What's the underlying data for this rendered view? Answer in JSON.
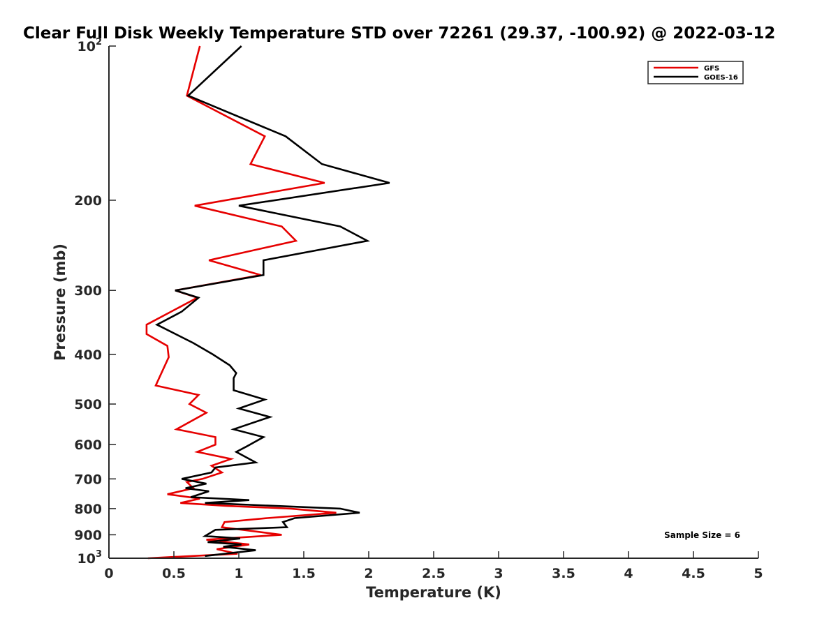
{
  "chart_data": {
    "type": "line",
    "title": "Clear Full Disk Weekly Temperature STD over 72261 (29.37, -100.92) @ 2022-03-12",
    "xlabel": "Temperature (K)",
    "ylabel": "Pressure (mb)",
    "xlim": [
      0,
      5
    ],
    "ylim": [
      1000,
      100
    ],
    "y_scale": "log",
    "x_ticks": [
      "0",
      "0.5",
      "1",
      "1.5",
      "2",
      "2.5",
      "3",
      "3.5",
      "4",
      "4.5",
      "5"
    ],
    "y_ticks": [
      {
        "value": 100,
        "base": "10",
        "exp": "2"
      },
      {
        "value": 200,
        "label": "200"
      },
      {
        "value": 300,
        "label": "300"
      },
      {
        "value": 400,
        "label": "400"
      },
      {
        "value": 500,
        "label": "500"
      },
      {
        "value": 600,
        "label": "600"
      },
      {
        "value": 700,
        "label": "700"
      },
      {
        "value": 800,
        "label": "800"
      },
      {
        "value": 900,
        "label": "900"
      },
      {
        "value": 1000,
        "base": "10",
        "exp": "3"
      }
    ],
    "grid": false,
    "legend_position": "top-right",
    "annotation": "Sample Size = 6",
    "series": [
      {
        "name": "GFS",
        "color": "#e60000",
        "points": [
          [
            0.7,
            100
          ],
          [
            0.6,
            125
          ],
          [
            1.2,
            150
          ],
          [
            1.09,
            170
          ],
          [
            1.66,
            185
          ],
          [
            0.66,
            205
          ],
          [
            1.33,
            225
          ],
          [
            1.44,
            240
          ],
          [
            0.77,
            262
          ],
          [
            1.17,
            280
          ],
          [
            0.51,
            300
          ],
          [
            0.68,
            310
          ],
          [
            0.29,
            350
          ],
          [
            0.29,
            365
          ],
          [
            0.45,
            385
          ],
          [
            0.46,
            405
          ],
          [
            0.36,
            460
          ],
          [
            0.69,
            480
          ],
          [
            0.62,
            500
          ],
          [
            0.75,
            520
          ],
          [
            0.52,
            560
          ],
          [
            0.82,
            580
          ],
          [
            0.82,
            600
          ],
          [
            0.68,
            620
          ],
          [
            0.94,
            640
          ],
          [
            0.79,
            660
          ],
          [
            0.87,
            680
          ],
          [
            0.72,
            700
          ],
          [
            0.6,
            710
          ],
          [
            0.65,
            730
          ],
          [
            0.45,
            750
          ],
          [
            0.7,
            765
          ],
          [
            0.55,
            780
          ],
          [
            0.9,
            790
          ],
          [
            1.4,
            800
          ],
          [
            1.75,
            815
          ],
          [
            1.22,
            835
          ],
          [
            0.89,
            850
          ],
          [
            0.87,
            870
          ],
          [
            1.33,
            900
          ],
          [
            0.75,
            920
          ],
          [
            1.08,
            940
          ],
          [
            0.83,
            960
          ],
          [
            0.99,
            980
          ],
          [
            0.3,
            1000
          ]
        ]
      },
      {
        "name": "GOES-16",
        "color": "#000000",
        "points": [
          [
            1.02,
            100
          ],
          [
            0.61,
            125
          ],
          [
            1.36,
            150
          ],
          [
            1.64,
            170
          ],
          [
            2.16,
            185
          ],
          [
            1.0,
            205
          ],
          [
            1.78,
            225
          ],
          [
            1.99,
            240
          ],
          [
            1.19,
            262
          ],
          [
            1.19,
            280
          ],
          [
            0.51,
            300
          ],
          [
            0.69,
            310
          ],
          [
            0.56,
            330
          ],
          [
            0.37,
            350
          ],
          [
            0.65,
            380
          ],
          [
            0.8,
            400
          ],
          [
            0.93,
            420
          ],
          [
            0.98,
            435
          ],
          [
            0.96,
            445
          ],
          [
            0.96,
            470
          ],
          [
            1.2,
            490
          ],
          [
            1.0,
            510
          ],
          [
            1.24,
            530
          ],
          [
            0.96,
            560
          ],
          [
            1.19,
            580
          ],
          [
            1.06,
            605
          ],
          [
            0.98,
            620
          ],
          [
            1.13,
            650
          ],
          [
            0.82,
            665
          ],
          [
            0.79,
            680
          ],
          [
            0.56,
            700
          ],
          [
            0.75,
            715
          ],
          [
            0.59,
            730
          ],
          [
            0.77,
            740
          ],
          [
            0.63,
            760
          ],
          [
            1.08,
            770
          ],
          [
            0.74,
            780
          ],
          [
            1.78,
            800
          ],
          [
            1.93,
            815
          ],
          [
            1.43,
            835
          ],
          [
            1.34,
            850
          ],
          [
            1.37,
            870
          ],
          [
            0.82,
            880
          ],
          [
            0.74,
            905
          ],
          [
            1.01,
            915
          ],
          [
            0.76,
            930
          ],
          [
            1.02,
            940
          ],
          [
            0.88,
            950
          ],
          [
            1.13,
            965
          ],
          [
            0.74,
            990
          ]
        ]
      }
    ]
  }
}
